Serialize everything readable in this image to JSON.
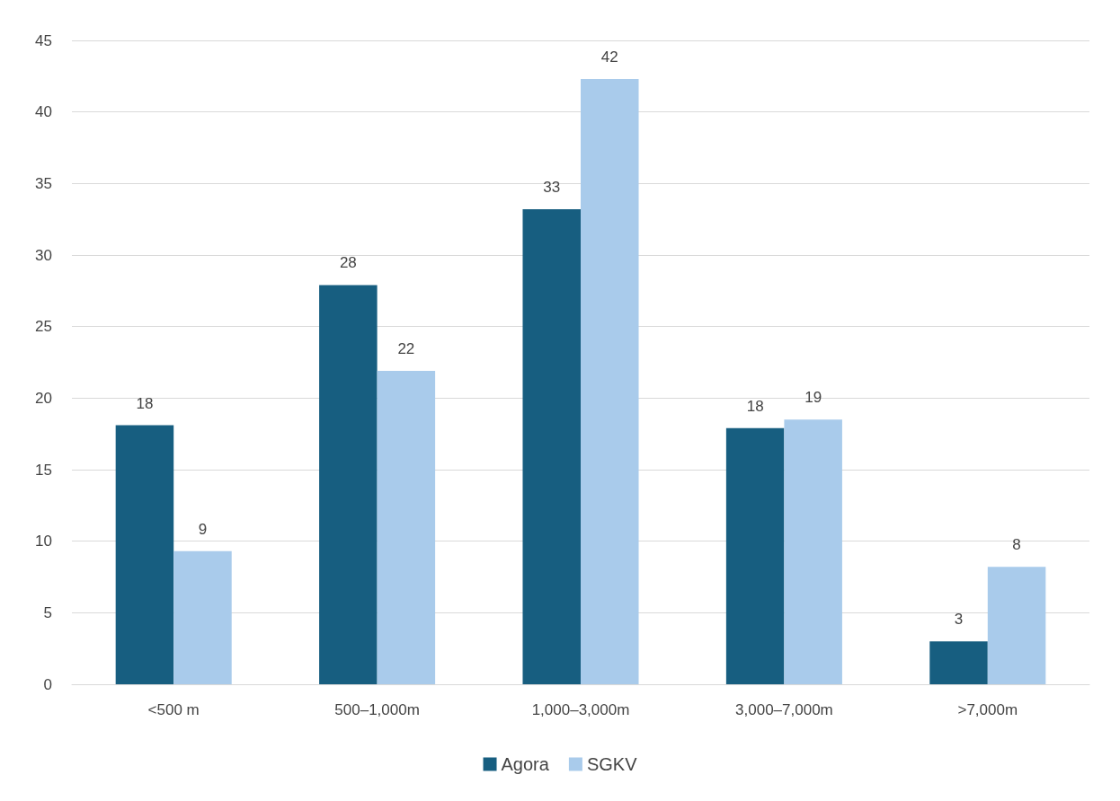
{
  "chart_data": {
    "type": "bar",
    "categories": [
      "<500 m",
      "500–1,000m",
      "1,000–3,000m",
      "3,000–7,000m",
      ">7,000m"
    ],
    "series": [
      {
        "name": "Agora",
        "color": "#175e80",
        "values": [
          18.1,
          27.9,
          33.2,
          17.9,
          3.0
        ],
        "value_labels": [
          "18",
          "28",
          "33",
          "18",
          "3"
        ]
      },
      {
        "name": "SGKV",
        "color": "#a9cbeb",
        "values": [
          9.3,
          21.9,
          42.3,
          18.5,
          8.2
        ],
        "value_labels": [
          "9",
          "22",
          "42",
          "19",
          "8"
        ]
      }
    ],
    "ylim": [
      0,
      45
    ],
    "yticks": [
      0,
      5,
      10,
      15,
      20,
      25,
      30,
      35,
      40,
      45
    ],
    "grid": "y",
    "legend": "bottom"
  }
}
